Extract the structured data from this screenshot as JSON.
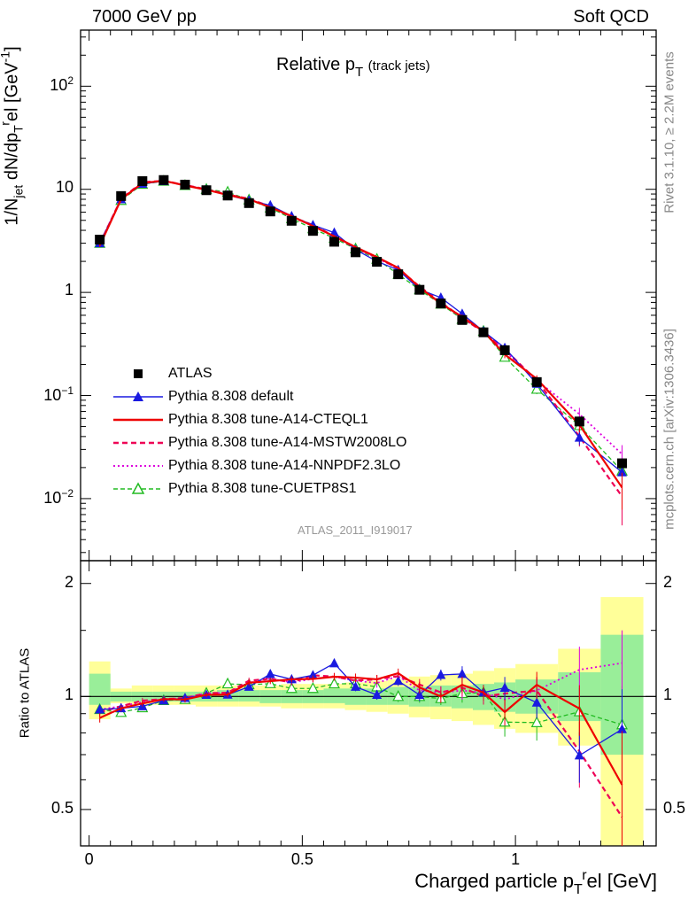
{
  "header": {
    "left": "7000 GeV pp",
    "right": "Soft QCD"
  },
  "plot_title": {
    "main": "Relative p",
    "sub": "T",
    "small": "(track jets)"
  },
  "side_labels": {
    "rivet": "Rivet 3.1.10, ≥ 2.2M events",
    "mcplots": "mcplots.cern.ch [arXiv:1306.3436]"
  },
  "analysis_id": "ATLAS_2011_I919017",
  "colors": {
    "data": "#000000",
    "default": "#1a1ae0",
    "a14_cteql1": "#ee0000",
    "a14_mstw": "#ee0055",
    "a14_nnpdf": "#dd00dd",
    "cuetp8s1": "#22bb22",
    "band_yellow": "#ffff99",
    "band_green": "#99ee99"
  },
  "axes": {
    "y_main_label": {
      "a": "1/N",
      "a_sub": "jet",
      "b": " dN/dp",
      "b_sub": "T",
      "b_sup": "r",
      "c": "el [GeV",
      "c_sup": "-1",
      "d": "]"
    },
    "y_ratio_label": "Ratio to ATLAS",
    "x_label": {
      "a": "Charged particle p",
      "a_sub": "T",
      "a_sup": "r",
      "b": "el [GeV]"
    },
    "y_main_ticks": [
      {
        "base": "10",
        "exp": "2"
      },
      {
        "base": "10",
        "exp": ""
      },
      {
        "base": "1",
        "exp": ""
      },
      {
        "base": "10",
        "exp": "−1"
      },
      {
        "base": "10",
        "exp": "−2"
      }
    ],
    "y_ratio_ticks": [
      "2",
      "1",
      "0.5"
    ],
    "x_ticks": [
      "0",
      "0.5",
      "1"
    ]
  },
  "legend": [
    {
      "label": "ATLAS"
    },
    {
      "label": "Pythia 8.308 default"
    },
    {
      "label": "Pythia 8.308 tune-A14-CTEQL1"
    },
    {
      "label": "Pythia 8.308 tune-A14-MSTW2008LO"
    },
    {
      "label": "Pythia 8.308 tune-A14-NNPDF2.3LO"
    },
    {
      "label": "Pythia 8.308 tune-CUETP8S1"
    }
  ],
  "chart_data": {
    "type": "scatter",
    "title": "Relative pT (track jets)",
    "xlabel": "Charged particle pT rel [GeV]",
    "ylabel": "1/Njet dN/dpT rel [GeV-1]",
    "xlim": [
      -0.02,
      1.33
    ],
    "ylim": [
      0.0025,
      350
    ],
    "yscale": "log",
    "ratio_ylim": [
      0.4,
      2.3
    ],
    "ratio_yscale": "log",
    "x": [
      0.025,
      0.075,
      0.125,
      0.175,
      0.225,
      0.275,
      0.325,
      0.375,
      0.425,
      0.475,
      0.525,
      0.575,
      0.625,
      0.675,
      0.725,
      0.775,
      0.825,
      0.875,
      0.925,
      0.975,
      1.05,
      1.15,
      1.25
    ],
    "x_edges": [
      0.0,
      0.05,
      0.1,
      0.15,
      0.2,
      0.25,
      0.3,
      0.35,
      0.4,
      0.45,
      0.5,
      0.55,
      0.6,
      0.65,
      0.7,
      0.75,
      0.8,
      0.85,
      0.9,
      0.95,
      1.0,
      1.1,
      1.2,
      1.3
    ],
    "series": [
      {
        "name": "ATLAS",
        "values": [
          3.25,
          8.6,
          12.0,
          12.3,
          11.1,
          9.8,
          8.7,
          7.35,
          6.1,
          4.95,
          3.95,
          3.1,
          2.45,
          1.98,
          1.5,
          1.06,
          0.78,
          0.54,
          0.41,
          0.275,
          0.135,
          0.056,
          0.022
        ]
      },
      {
        "name": "Pythia 8.308 default",
        "values": [
          3.0,
          8.0,
          11.3,
          12.0,
          11.0,
          9.9,
          8.8,
          7.8,
          7.0,
          5.5,
          4.5,
          3.8,
          2.6,
          2.0,
          1.65,
          1.07,
          0.89,
          0.62,
          0.42,
          0.29,
          0.13,
          0.039,
          0.018
        ],
        "errors": [
          0.08,
          0.15,
          0.2,
          0.2,
          0.2,
          0.15,
          0.15,
          0.15,
          0.12,
          0.1,
          0.09,
          0.08,
          0.07,
          0.06,
          0.05,
          0.04,
          0.03,
          0.03,
          0.02,
          0.02,
          0.012,
          0.006,
          0.005
        ]
      },
      {
        "name": "Pythia 8.308 tune-A14-CTEQL1",
        "values": [
          2.85,
          8.0,
          11.5,
          12.1,
          10.9,
          9.9,
          8.8,
          8.0,
          6.7,
          5.5,
          4.4,
          3.5,
          2.75,
          2.2,
          1.73,
          1.12,
          0.78,
          0.58,
          0.42,
          0.25,
          0.145,
          0.052,
          0.0128
        ],
        "errors": [
          0.08,
          0.15,
          0.2,
          0.2,
          0.2,
          0.15,
          0.15,
          0.15,
          0.12,
          0.1,
          0.09,
          0.08,
          0.07,
          0.06,
          0.05,
          0.04,
          0.03,
          0.03,
          0.02,
          0.02,
          0.012,
          0.008,
          0.005
        ]
      },
      {
        "name": "Pythia 8.308 tune-A14-MSTW2008LO",
        "values": [
          2.95,
          8.1,
          11.7,
          12.1,
          11.0,
          10.0,
          8.9,
          8.1,
          6.8,
          5.4,
          4.5,
          3.5,
          2.7,
          2.2,
          1.7,
          1.14,
          0.8,
          0.57,
          0.41,
          0.28,
          0.14,
          0.04,
          0.0105
        ],
        "errors": [
          0.08,
          0.15,
          0.2,
          0.2,
          0.2,
          0.15,
          0.15,
          0.15,
          0.12,
          0.1,
          0.09,
          0.08,
          0.07,
          0.06,
          0.05,
          0.04,
          0.03,
          0.03,
          0.02,
          0.02,
          0.012,
          0.008,
          0.005
        ]
      },
      {
        "name": "Pythia 8.308 tune-A14-NNPDF2.3LO",
        "values": [
          3.0,
          8.1,
          11.6,
          12.1,
          11.0,
          10.0,
          8.9,
          8.0,
          6.8,
          5.4,
          4.4,
          3.5,
          2.7,
          2.15,
          1.7,
          1.1,
          0.8,
          0.56,
          0.42,
          0.27,
          0.14,
          0.066,
          0.027
        ],
        "errors": [
          0.08,
          0.15,
          0.2,
          0.2,
          0.2,
          0.15,
          0.15,
          0.15,
          0.12,
          0.1,
          0.09,
          0.08,
          0.07,
          0.06,
          0.05,
          0.04,
          0.03,
          0.03,
          0.02,
          0.02,
          0.012,
          0.01,
          0.006
        ]
      },
      {
        "name": "Pythia 8.308 tune-CUETP8S1",
        "values": [
          3.0,
          7.8,
          11.2,
          12.0,
          10.9,
          10.0,
          9.4,
          7.9,
          6.6,
          5.2,
          4.15,
          3.35,
          2.65,
          2.1,
          1.5,
          1.06,
          0.77,
          0.55,
          0.42,
          0.235,
          0.115,
          0.051,
          0.0185
        ],
        "errors": [
          0.08,
          0.15,
          0.2,
          0.2,
          0.2,
          0.15,
          0.15,
          0.15,
          0.12,
          0.1,
          0.09,
          0.08,
          0.07,
          0.06,
          0.05,
          0.04,
          0.03,
          0.03,
          0.02,
          0.02,
          0.012,
          0.008,
          0.005
        ]
      }
    ],
    "ratio_band_yellow": [
      [
        0.87,
        1.24
      ],
      [
        0.96,
        1.05
      ],
      [
        0.95,
        1.07
      ],
      [
        0.95,
        1.07
      ],
      [
        0.95,
        1.07
      ],
      [
        0.94,
        1.07
      ],
      [
        0.94,
        1.07
      ],
      [
        0.94,
        1.07
      ],
      [
        0.94,
        1.07
      ],
      [
        0.93,
        1.08
      ],
      [
        0.93,
        1.08
      ],
      [
        0.93,
        1.08
      ],
      [
        0.92,
        1.09
      ],
      [
        0.91,
        1.1
      ],
      [
        0.9,
        1.11
      ],
      [
        0.88,
        1.13
      ],
      [
        0.87,
        1.14
      ],
      [
        0.86,
        1.15
      ],
      [
        0.84,
        1.17
      ],
      [
        0.82,
        1.19
      ],
      [
        0.8,
        1.22
      ],
      [
        0.74,
        1.34
      ],
      [
        0.33,
        1.84
      ]
    ],
    "ratio_band_green": [
      [
        0.95,
        1.15
      ],
      [
        0.97,
        1.03
      ],
      [
        0.97,
        1.03
      ],
      [
        0.97,
        1.03
      ],
      [
        0.97,
        1.03
      ],
      [
        0.97,
        1.03
      ],
      [
        0.97,
        1.04
      ],
      [
        0.97,
        1.04
      ],
      [
        0.96,
        1.04
      ],
      [
        0.96,
        1.04
      ],
      [
        0.96,
        1.04
      ],
      [
        0.96,
        1.05
      ],
      [
        0.95,
        1.05
      ],
      [
        0.95,
        1.05
      ],
      [
        0.95,
        1.06
      ],
      [
        0.94,
        1.06
      ],
      [
        0.94,
        1.07
      ],
      [
        0.93,
        1.07
      ],
      [
        0.92,
        1.08
      ],
      [
        0.91,
        1.09
      ],
      [
        0.9,
        1.11
      ],
      [
        0.86,
        1.16
      ],
      [
        0.7,
        1.46
      ]
    ]
  }
}
